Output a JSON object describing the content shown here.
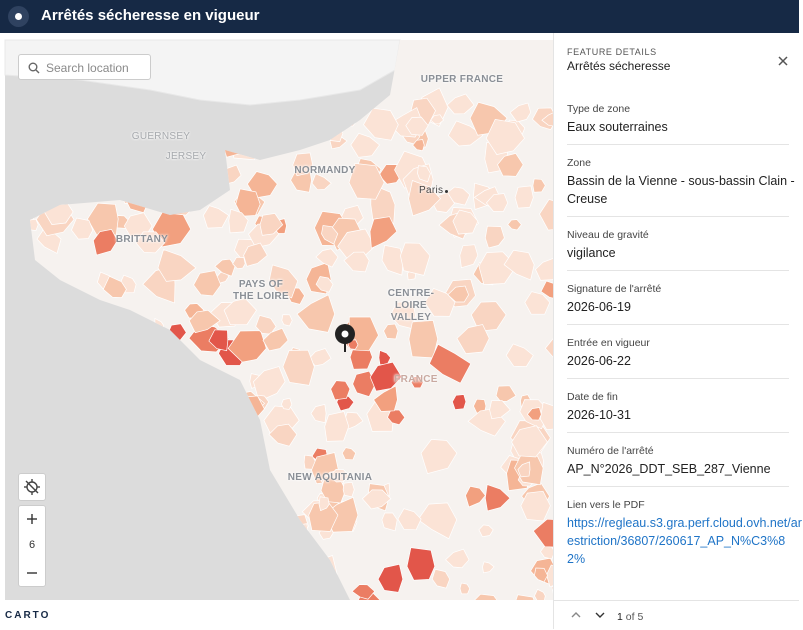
{
  "header": {
    "title": "Arrêtés sécheresse en vigueur"
  },
  "search": {
    "placeholder": "Search location"
  },
  "map": {
    "labels": [
      "UPPER FRANCE",
      "GUERNSEY",
      "JERSEY",
      "NORMANDY",
      "Paris",
      "BRITTANY",
      "PAYS OF THE LOIRE",
      "CENTRE-LOIRE VALLEY",
      "FRANCE",
      "NEW AQUITANIA"
    ],
    "zoom": "6"
  },
  "panel": {
    "kicker": "FEATURE DETAILS",
    "title": "Arrêtés sécheresse",
    "fields": [
      {
        "label": "Type de zone",
        "value": "Eaux souterraines"
      },
      {
        "label": "Zone",
        "value": "Bassin de la Vienne - sous-bassin Clain - Creuse"
      },
      {
        "label": "Niveau de gravité",
        "value": "vigilance"
      },
      {
        "label": "Signature de l'arrêté",
        "value": "2026-06-19"
      },
      {
        "label": "Entrée en vigueur",
        "value": "2026-06-22"
      },
      {
        "label": "Date de fin",
        "value": "2026-10-31"
      },
      {
        "label": "Numéro de l'arrêté",
        "value": "AP_N°2026_DDT_SEB_287_Vienne"
      },
      {
        "label": "Lien vers le PDF",
        "value": "https://regleau.s3.gra.perf.cloud.ovh.net/arestriction/36807/260617_AP_N%C3%82%"
      }
    ],
    "pagination": {
      "current": "1",
      "total": "of 5"
    }
  },
  "footer": {
    "logo": "CARTO"
  }
}
